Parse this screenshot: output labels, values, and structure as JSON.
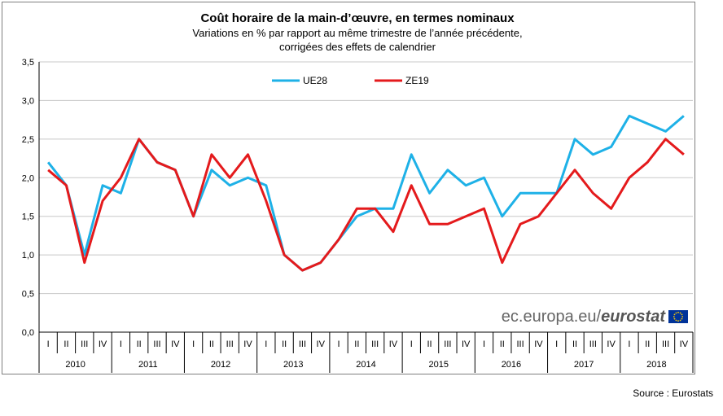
{
  "chart_data": {
    "type": "line",
    "title": "Coût horaire de la main-d’œuvre, en termes nominaux",
    "subtitle_lines": [
      "Variations en % par rapport au même trimestre de l’année précédente,",
      "corrigées des effets de calendrier"
    ],
    "ylim": [
      0,
      3.5
    ],
    "yticks": [
      "0,0",
      "0,5",
      "1,0",
      "1,5",
      "2,0",
      "2,5",
      "3,0",
      "3,5"
    ],
    "ytick_values": [
      0,
      0.5,
      1.0,
      1.5,
      2.0,
      2.5,
      3.0,
      3.5
    ],
    "grid": true,
    "legend_position": "top",
    "quarters": [
      "I",
      "II",
      "III",
      "IV"
    ],
    "years": [
      "2010",
      "2011",
      "2012",
      "2013",
      "2014",
      "2015",
      "2016",
      "2017",
      "2018"
    ],
    "series": [
      {
        "name": "UE28",
        "color": "#1eb1e7",
        "values": [
          2.2,
          1.9,
          1.0,
          1.9,
          1.8,
          2.5,
          2.2,
          2.1,
          1.5,
          2.1,
          1.9,
          2.0,
          1.9,
          1.0,
          0.8,
          0.9,
          1.2,
          1.5,
          1.6,
          1.6,
          2.3,
          1.8,
          2.1,
          1.9,
          2.0,
          1.5,
          1.8,
          1.8,
          1.8,
          2.5,
          2.3,
          2.4,
          2.8,
          2.7,
          2.6,
          2.8
        ]
      },
      {
        "name": "ZE19",
        "color": "#e41a1c",
        "values": [
          2.1,
          1.9,
          0.9,
          1.7,
          2.0,
          2.5,
          2.2,
          2.1,
          1.5,
          2.3,
          2.0,
          2.3,
          1.7,
          1.0,
          0.8,
          0.9,
          1.2,
          1.6,
          1.6,
          1.3,
          1.9,
          1.4,
          1.4,
          1.5,
          1.6,
          0.9,
          1.4,
          1.5,
          1.8,
          2.1,
          1.8,
          1.6,
          2.0,
          2.2,
          2.5,
          2.3
        ]
      }
    ]
  },
  "watermark": {
    "prefix": "ec.europa.eu/",
    "brand": "eurostat"
  },
  "source_text": "Source : Eurostats",
  "colors": {
    "grid": "#c8c8c8",
    "axis": "#000000",
    "flag_blue": "#003399",
    "flag_star": "#ffcc00"
  },
  "icons": {
    "eu_flag": "eu-flag-icon"
  }
}
